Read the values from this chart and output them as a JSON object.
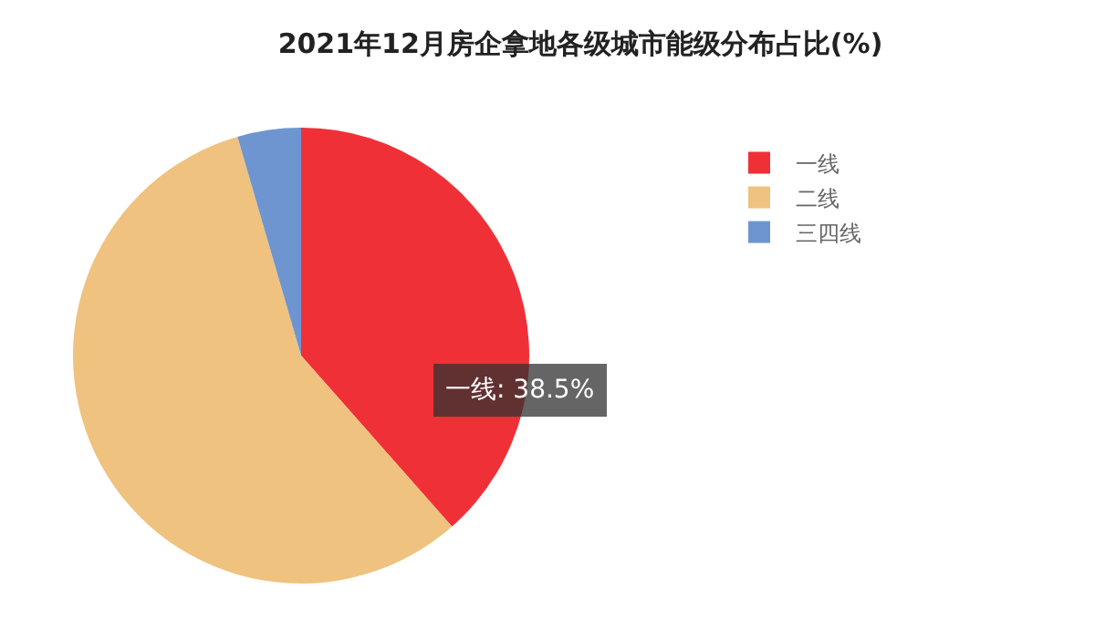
{
  "chart_data": {
    "type": "pie",
    "title": "2021年12月房企拿地各级城市能级分布占比(%)",
    "categories": [
      "一线",
      "二线",
      "三四线"
    ],
    "values": [
      38.5,
      57,
      4.5
    ],
    "colors": [
      "#f03037",
      "#efc27f",
      "#6f95d0"
    ],
    "legend": "right",
    "annotations": [
      "一线: 38.5%"
    ]
  }
}
